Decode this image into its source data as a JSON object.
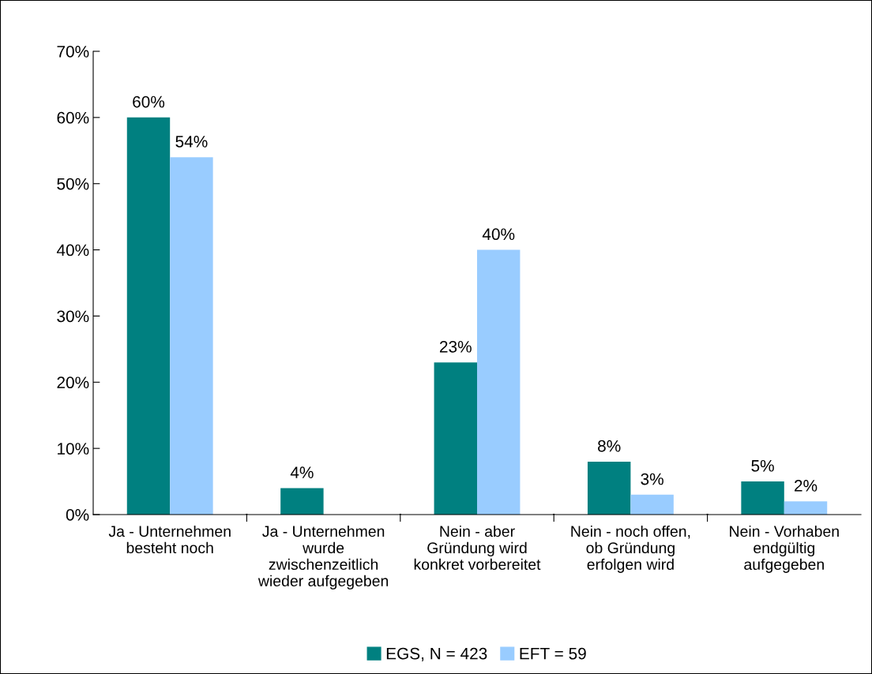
{
  "chart_data": {
    "type": "bar",
    "categories": [
      "Ja - Unternehmen\nbesteht noch",
      "Ja - Unternehmen\nwurde\nzwischenzeitlich\nwieder aufgegeben",
      "Nein - aber\nGründung wird\nkonkret vorbereitet",
      "Nein - noch offen,\nob Gründung\nerfolgen wird",
      "Nein - Vorhaben\nendgültig\naufgegeben"
    ],
    "series": [
      {
        "name": "EGS, N = 423",
        "color": "#008080",
        "values": [
          60,
          4,
          23,
          8,
          5
        ],
        "value_labels": [
          "60%",
          "4%",
          "23%",
          "8%",
          "5%"
        ]
      },
      {
        "name": "EFT = 59",
        "color": "#99ccff",
        "values": [
          54,
          null,
          40,
          3,
          2
        ],
        "value_labels": [
          "54%",
          null,
          "40%",
          "3%",
          "2%"
        ]
      }
    ],
    "ylim": [
      0,
      70
    ],
    "yticks": [
      {
        "value": 0,
        "label": "0%"
      },
      {
        "value": 10,
        "label": "10%"
      },
      {
        "value": 20,
        "label": "20%"
      },
      {
        "value": 30,
        "label": "30%"
      },
      {
        "value": 40,
        "label": "40%"
      },
      {
        "value": 50,
        "label": "50%"
      },
      {
        "value": 60,
        "label": "60%"
      },
      {
        "value": 70,
        "label": "70%"
      }
    ],
    "grid": false,
    "legend": "bottom"
  }
}
